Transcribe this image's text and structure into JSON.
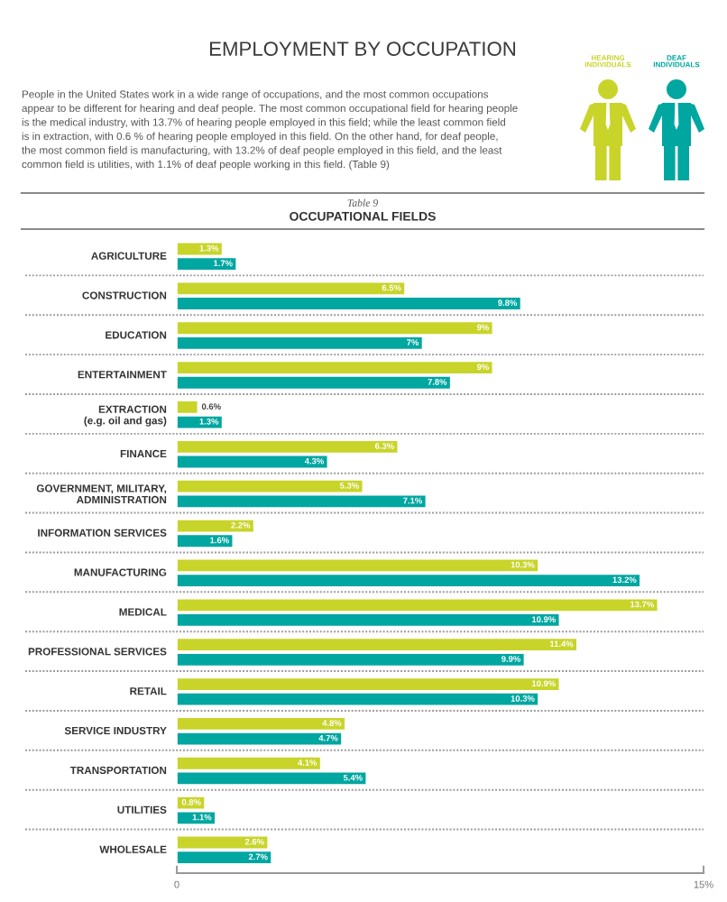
{
  "chart_data": {
    "type": "bar",
    "orientation": "horizontal",
    "title": "EMPLOYMENT BY OCCUPATION",
    "subtitle": "People in the United States work in a wide range of occupations, and the most common occupations\nappear to be different for hearing and deaf people. The most common occupational field for hearing people\nis the medical industry, with 13.7% of hearing people employed in this field; while the least common field\nis in extraction, with 0.6 % of hearing people employed in this field. On the other hand, for deaf people,\nthe most common field is manufacturing, with 13.2% of deaf people employed in this field, and the least\ncommon field is utilities, with 1.1% of deaf people working in this field. (Table 9)",
    "annotations": [
      "Table 9",
      "OCCUPATIONAL FIELDS"
    ],
    "categories": [
      "AGRICULTURE",
      "CONSTRUCTION",
      "EDUCATION",
      "ENTERTAINMENT",
      "EXTRACTION\n(e.g. oil and gas)",
      "FINANCE",
      "GOVERNMENT, MILITARY,\nADMINISTRATION",
      "INFORMATION SERVICES",
      "MANUFACTURING",
      "MEDICAL",
      "PROFESSIONAL SERVICES",
      "RETAIL",
      "SERVICE INDUSTRY",
      "TRANSPORTATION",
      "UTILITIES",
      "WHOLESALE"
    ],
    "series": [
      {
        "name": "HEARING\nINDIVIDUALS",
        "color": "#c8d42a",
        "values": [
          1.3,
          6.5,
          9,
          9,
          0.6,
          6.3,
          5.3,
          2.2,
          10.3,
          13.7,
          11.4,
          10.9,
          4.8,
          4.1,
          0.8,
          2.6
        ],
        "value_labels": [
          "1.3%",
          "6.5%",
          "9%",
          "9%",
          "0.6%",
          "6.3%",
          "5.3%",
          "2.2%",
          "10.3%",
          "13.7%",
          "11.4%",
          "10.9%",
          "4.8%",
          "4.1%",
          "0.8%",
          "2.6%"
        ]
      },
      {
        "name": "DEAF\nINDIVIDUALS",
        "color": "#00a6a0",
        "values": [
          1.7,
          9.8,
          7,
          7.8,
          1.3,
          4.3,
          7.1,
          1.6,
          13.2,
          10.9,
          9.9,
          10.3,
          4.7,
          5.4,
          1.1,
          2.7
        ],
        "value_labels": [
          "1.7%",
          "9.8%",
          "7%",
          "7.8%",
          "1.3%",
          "4.3%",
          "7.1%",
          "1.6%",
          "13.2%",
          "10.9%",
          "9.9%",
          "10.3%",
          "4.7%",
          "5.4%",
          "1.1%",
          "2.7%"
        ]
      }
    ],
    "xlim": [
      0,
      15
    ],
    "xticks": [
      0,
      {
        "value": 15,
        "label": "15%"
      }
    ],
    "grid": "y",
    "legend": "top right"
  }
}
